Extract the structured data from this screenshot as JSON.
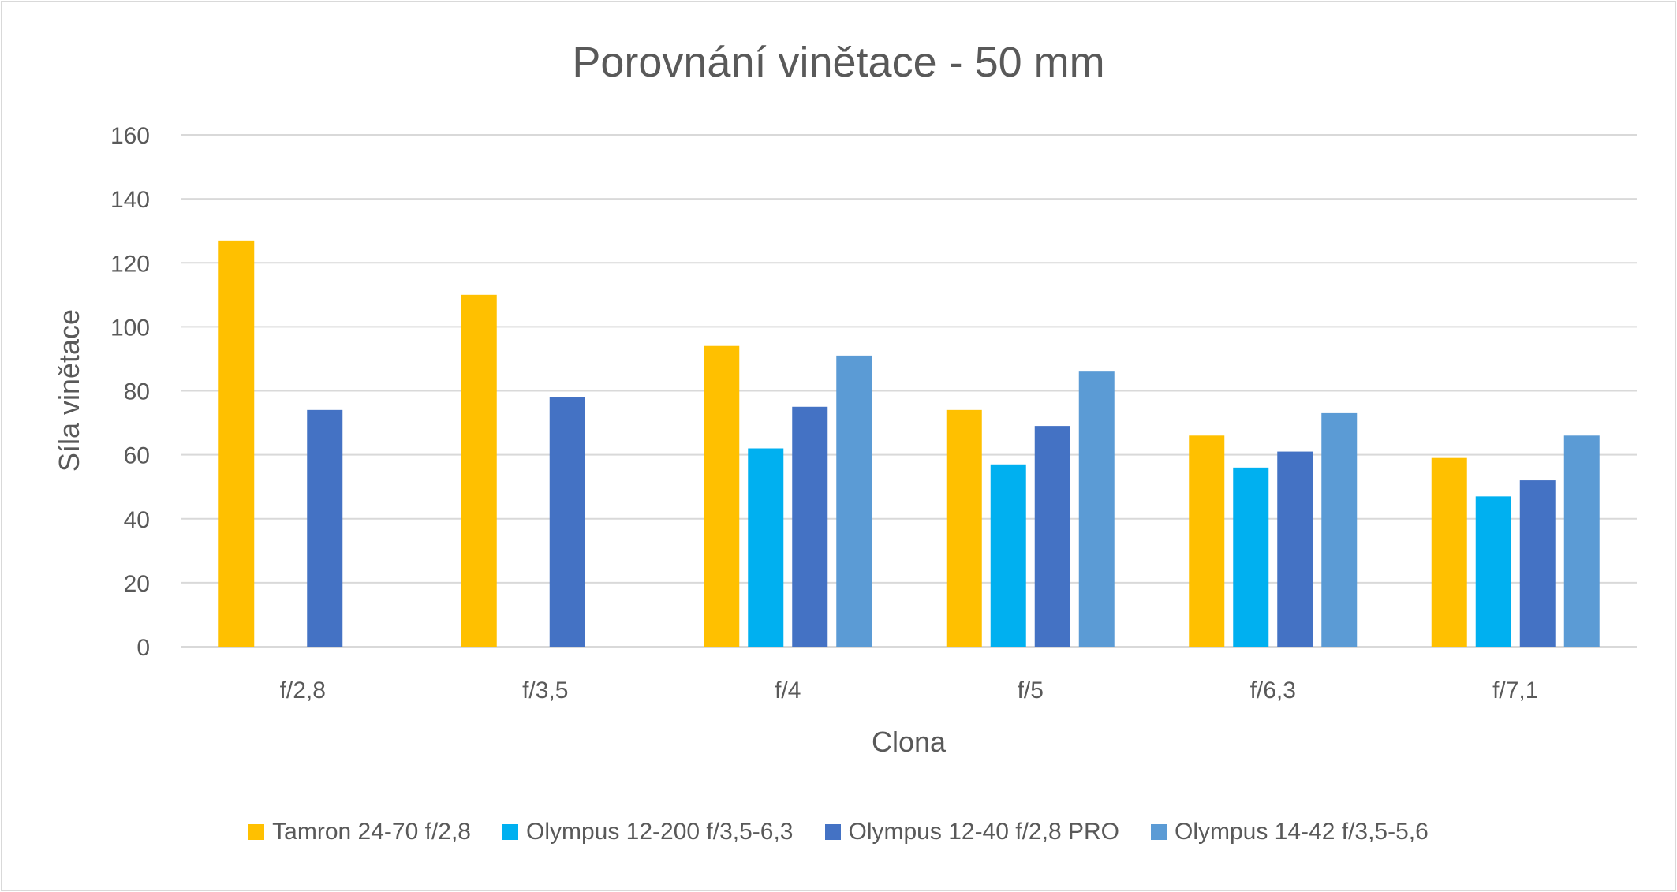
{
  "chart_data": {
    "type": "bar",
    "title": "Porovnání vinětace - 50 mm",
    "xlabel": "Clona",
    "ylabel": "Síla vinětace",
    "ylim": [
      0,
      160
    ],
    "yticks": [
      0,
      20,
      40,
      60,
      80,
      100,
      120,
      140,
      160
    ],
    "grid": true,
    "legend_position": "bottom",
    "categories": [
      "f/2,8",
      "f/3,5",
      "f/4",
      "f/5",
      "f/6,3",
      "f/7,1"
    ],
    "series": [
      {
        "name": "Tamron 24-70 f/2,8",
        "color": "#FFC000",
        "values": [
          127,
          110,
          94,
          74,
          66,
          59
        ]
      },
      {
        "name": "Olympus 12-200 f/3,5-6,3",
        "color": "#00B0F0",
        "values": [
          null,
          null,
          62,
          57,
          56,
          47
        ]
      },
      {
        "name": "Olympus 12-40 f/2,8 PRO",
        "color": "#4472C4",
        "values": [
          74,
          78,
          75,
          69,
          61,
          52
        ]
      },
      {
        "name": "Olympus 14-42 f/3,5-5,6",
        "color": "#5B9BD5",
        "values": [
          null,
          null,
          91,
          86,
          73,
          66
        ]
      }
    ]
  }
}
